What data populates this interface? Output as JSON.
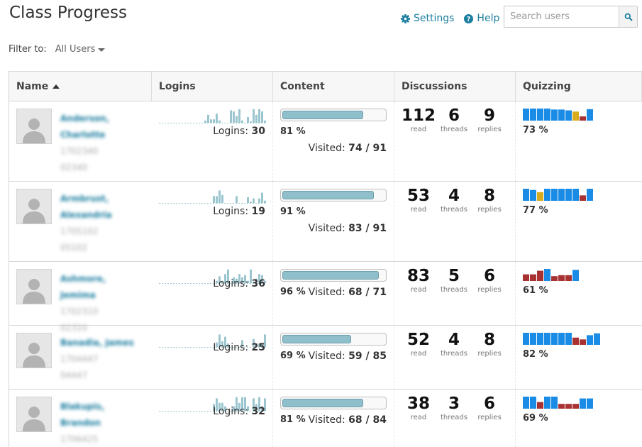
{
  "app": {
    "title": "Class Progress",
    "settings_label": "Settings",
    "help_label": "Help",
    "search_placeholder": "Search users",
    "filter_label": "Filter to:",
    "filter_value": "All Users"
  },
  "columns": [
    "Name",
    "Logins",
    "Content",
    "Discussions",
    "Quizzing"
  ],
  "labels": {
    "logins": "Logins:",
    "visited": "Visited:",
    "read": "read",
    "threads": "threads",
    "replies": "replies"
  },
  "colors": {
    "accent": "#1b7ea0",
    "spark": "#9cc6cf",
    "quiz_pass": "#1a8ce6",
    "quiz_fail": "#a83232",
    "quiz_mid": "#d8ac1c",
    "progress_fill": "#8fbfca"
  },
  "students": [
    {
      "name": "Anderson, Charlotte",
      "id1": "1702340",
      "id2": "02340",
      "logins": "30",
      "login_history": [
        0,
        0,
        0,
        0,
        0,
        0,
        0,
        0,
        0,
        0,
        0,
        0,
        0,
        0,
        0,
        0,
        2,
        7,
        3,
        3,
        8,
        2,
        0,
        0,
        0,
        11,
        10,
        6,
        12,
        2,
        0,
        5,
        1,
        12,
        7,
        12,
        10,
        2
      ],
      "content_pct": "81 %",
      "content_fraction": 0.81,
      "visited": "74 / 91",
      "read": "112",
      "threads": "6",
      "replies": "9",
      "quiz_pct": "73 %",
      "quiz_bars": [
        {
          "h": 1,
          "c": "p"
        },
        {
          "h": 1,
          "c": "p"
        },
        {
          "h": 1,
          "c": "p"
        },
        {
          "h": 1,
          "c": "p"
        },
        {
          "h": 0.92,
          "c": "p"
        },
        {
          "h": 0.92,
          "c": "p"
        },
        {
          "h": 0.85,
          "c": "p"
        },
        {
          "h": 0.75,
          "c": "m"
        },
        {
          "h": 0.35,
          "c": "f"
        },
        {
          "h": 0.95,
          "c": "p"
        }
      ],
      "has_ids": true
    },
    {
      "name": "Armbrust, Alexandria",
      "id1": "1705102",
      "id2": "05102",
      "logins": "19",
      "login_history": [
        0,
        0,
        0,
        0,
        0,
        0,
        0,
        0,
        0,
        0,
        0,
        0,
        0,
        0,
        0,
        0,
        0,
        0,
        0,
        6,
        6,
        11,
        7,
        0,
        0,
        0,
        0,
        6,
        0,
        0,
        0,
        5,
        1,
        4,
        0,
        4,
        9,
        2
      ],
      "content_pct": "91 %",
      "content_fraction": 0.91,
      "visited": "83 / 91",
      "read": "53",
      "threads": "4",
      "replies": "8",
      "quiz_pct": "77 %",
      "quiz_bars": [
        {
          "h": 1,
          "c": "p"
        },
        {
          "h": 0.9,
          "c": "p"
        },
        {
          "h": 0.72,
          "c": "m"
        },
        {
          "h": 1,
          "c": "p"
        },
        {
          "h": 1,
          "c": "p"
        },
        {
          "h": 1,
          "c": "p"
        },
        {
          "h": 1,
          "c": "p"
        },
        {
          "h": 1,
          "c": "p"
        },
        {
          "h": 0.45,
          "c": "f"
        },
        {
          "h": 1,
          "c": "p"
        }
      ],
      "has_ids": true
    },
    {
      "name": "Ashmore, Jemima",
      "id1": "1702310",
      "id2": "02310",
      "logins": "36",
      "login_history": [
        0,
        0,
        0,
        0,
        0,
        0,
        0,
        0,
        0,
        0,
        0,
        0,
        0,
        0,
        0,
        0,
        0,
        0,
        0,
        0,
        2,
        6,
        2,
        8,
        12,
        0,
        5,
        4,
        8,
        5,
        7,
        2,
        12,
        1,
        4,
        8,
        7,
        2
      ],
      "content_pct": "96 %",
      "content_fraction": 0.96,
      "visited": "68 / 71",
      "read": "83",
      "threads": "5",
      "replies": "6",
      "quiz_pct": "61 %",
      "quiz_bars": [
        {
          "h": 0.55,
          "c": "f"
        },
        {
          "h": 0.55,
          "c": "f"
        },
        {
          "h": 0.85,
          "c": "f"
        },
        {
          "h": 1,
          "c": "p"
        },
        {
          "h": 0.4,
          "c": "f"
        },
        {
          "h": 0.48,
          "c": "f"
        },
        {
          "h": 0.48,
          "c": "f"
        },
        {
          "h": 0.92,
          "c": "p"
        }
      ],
      "has_ids": true
    },
    {
      "name": "Banadia, James",
      "id1": "1704447",
      "id2": "04447",
      "logins": "25",
      "login_history": [
        0,
        0,
        0,
        0,
        0,
        0,
        0,
        0,
        0,
        0,
        0,
        0,
        0,
        0,
        0,
        0,
        0,
        0,
        0,
        0,
        4,
        11,
        5,
        9,
        3,
        0,
        0,
        0,
        0,
        6,
        0,
        0,
        0,
        7,
        3,
        3,
        3,
        11
      ],
      "content_pct": "69 %",
      "content_fraction": 0.69,
      "visited": "59 / 85",
      "read": "52",
      "threads": "4",
      "replies": "8",
      "quiz_pct": "82 %",
      "quiz_bars": [
        {
          "h": 1,
          "c": "p"
        },
        {
          "h": 1,
          "c": "p"
        },
        {
          "h": 1,
          "c": "p"
        },
        {
          "h": 1,
          "c": "p"
        },
        {
          "h": 1,
          "c": "p"
        },
        {
          "h": 1,
          "c": "p"
        },
        {
          "h": 1,
          "c": "p"
        },
        {
          "h": 0.6,
          "c": "f"
        },
        {
          "h": 0.45,
          "c": "f"
        },
        {
          "h": 0.8,
          "c": "p"
        },
        {
          "h": 0.95,
          "c": "p"
        }
      ],
      "has_ids": true
    },
    {
      "name": "Blakupis, Brandon",
      "id1": "1706425",
      "id2": "06425",
      "logins": "32",
      "login_history": [
        0,
        0,
        0,
        0,
        0,
        0,
        0,
        0,
        0,
        0,
        0,
        0,
        0,
        0,
        0,
        0,
        0,
        0,
        0,
        6,
        11,
        7,
        7,
        4,
        0,
        0,
        4,
        12,
        7,
        12,
        12,
        4,
        0,
        11,
        6,
        12,
        4,
        11
      ],
      "content_pct": "81 %",
      "content_fraction": 0.81,
      "visited": "68 / 84",
      "read": "38",
      "threads": "3",
      "replies": "6",
      "quiz_pct": "69 %",
      "quiz_bars": [
        {
          "h": 1,
          "c": "p"
        },
        {
          "h": 1,
          "c": "p"
        },
        {
          "h": 0.55,
          "c": "f"
        },
        {
          "h": 1,
          "c": "p"
        },
        {
          "h": 1,
          "c": "p"
        },
        {
          "h": 0.4,
          "c": "f"
        },
        {
          "h": 0.4,
          "c": "f"
        },
        {
          "h": 0.4,
          "c": "f"
        },
        {
          "h": 0.85,
          "c": "p"
        },
        {
          "h": 0.85,
          "c": "p"
        }
      ],
      "has_ids": true
    }
  ]
}
